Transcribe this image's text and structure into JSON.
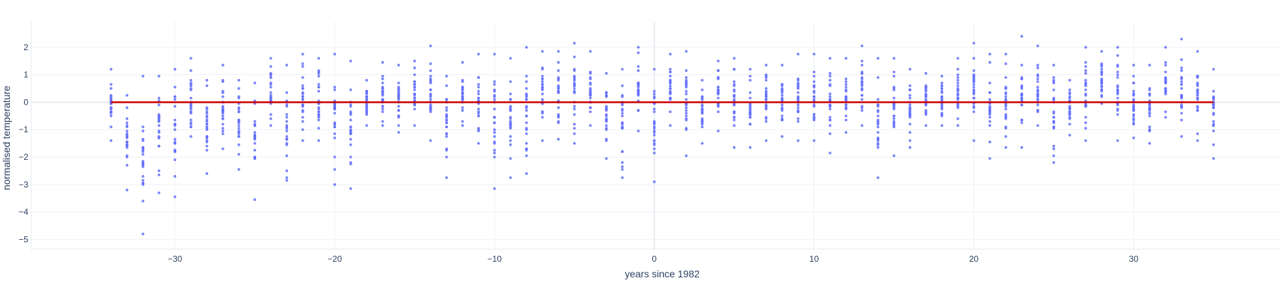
{
  "chart_data": {
    "type": "scatter",
    "title": "",
    "xlabel": "years since 1982",
    "ylabel": "normalised temperature",
    "xlim": [
      -39,
      39.2
    ],
    "ylim": [
      -5.35,
      2.95
    ],
    "x_ticks": [
      -30,
      -20,
      -10,
      0,
      10,
      20,
      30
    ],
    "x_tick_labels": [
      "−30",
      "−20",
      "−10",
      "0",
      "10",
      "20",
      "30"
    ],
    "y_ticks": [
      -5,
      -4,
      -3,
      -2,
      -1,
      0,
      1,
      2
    ],
    "y_tick_labels": [
      "−5",
      "−4",
      "−3",
      "−2",
      "−1",
      "0",
      "1",
      "2"
    ],
    "grid": true,
    "legend": "none",
    "points_color": "#636efa",
    "fit_color": "#cc0000",
    "years": [
      -34,
      -33,
      -32,
      -31,
      -30,
      -29,
      -28,
      -27,
      -26,
      -25,
      -24,
      -23,
      -22,
      -21,
      -20,
      -19,
      -18,
      -17,
      -16,
      -15,
      -14,
      -13,
      -12,
      -11,
      -10,
      -9,
      -8,
      -7,
      -6,
      -5,
      -4,
      -3,
      -2,
      -1,
      0,
      1,
      2,
      3,
      4,
      5,
      6,
      7,
      8,
      9,
      10,
      11,
      12,
      13,
      14,
      15,
      16,
      17,
      18,
      19,
      20,
      21,
      22,
      23,
      24,
      25,
      26,
      27,
      28,
      29,
      30,
      31,
      32,
      33,
      34,
      35
    ],
    "points_per_year": 24,
    "year_ranges": [
      [
        -1.4,
        1.2
      ],
      [
        -3.2,
        0.25
      ],
      [
        -4.8,
        0.95
      ],
      [
        -3.3,
        0.95
      ],
      [
        -3.45,
        1.2
      ],
      [
        -1.25,
        1.6
      ],
      [
        -2.6,
        0.8
      ],
      [
        -1.7,
        1.35
      ],
      [
        -2.45,
        0.8
      ],
      [
        -3.55,
        0.7
      ],
      [
        -0.85,
        1.6
      ],
      [
        -2.85,
        1.35
      ],
      [
        -1.4,
        1.75
      ],
      [
        -1.4,
        1.6
      ],
      [
        -3.0,
        1.75
      ],
      [
        -3.15,
        1.5
      ],
      [
        -0.85,
        0.8
      ],
      [
        -0.85,
        1.45
      ],
      [
        -1.1,
        1.35
      ],
      [
        -0.85,
        1.5
      ],
      [
        -1.4,
        2.05
      ],
      [
        -2.75,
        0.95
      ],
      [
        -0.85,
        1.45
      ],
      [
        -1.5,
        1.75
      ],
      [
        -3.15,
        1.75
      ],
      [
        -2.75,
        1.6
      ],
      [
        -2.6,
        2.0
      ],
      [
        -1.4,
        1.85
      ],
      [
        -1.35,
        1.85
      ],
      [
        -1.5,
        2.15
      ],
      [
        -0.85,
        1.85
      ],
      [
        -2.05,
        1.05
      ],
      [
        -2.75,
        1.2
      ],
      [
        -1.05,
        2.0
      ],
      [
        -2.9,
        1.2
      ],
      [
        -0.85,
        1.75
      ],
      [
        -1.95,
        1.85
      ],
      [
        -1.5,
        0.8
      ],
      [
        -1.05,
        1.5
      ],
      [
        -1.65,
        1.6
      ],
      [
        -1.65,
        1.2
      ],
      [
        -1.4,
        1.35
      ],
      [
        -1.25,
        1.35
      ],
      [
        -1.4,
        1.75
      ],
      [
        -1.4,
        1.75
      ],
      [
        -1.85,
        1.6
      ],
      [
        -1.1,
        1.6
      ],
      [
        -0.85,
        2.05
      ],
      [
        -2.75,
        1.6
      ],
      [
        -1.95,
        1.6
      ],
      [
        -1.65,
        1.2
      ],
      [
        -0.85,
        1.05
      ],
      [
        -0.85,
        0.95
      ],
      [
        -0.85,
        1.6
      ],
      [
        -1.4,
        2.15
      ],
      [
        -2.05,
        1.75
      ],
      [
        -1.65,
        1.75
      ],
      [
        -1.65,
        2.4
      ],
      [
        -0.85,
        2.05
      ],
      [
        -2.2,
        1.35
      ],
      [
        -1.2,
        0.8
      ],
      [
        -1.4,
        2.0
      ],
      [
        -0.05,
        1.85
      ],
      [
        -1.4,
        2.0
      ],
      [
        -1.3,
        1.35
      ],
      [
        -1.5,
        1.35
      ],
      [
        -0.55,
        2.0
      ],
      [
        -1.25,
        2.3
      ],
      [
        -1.4,
        1.85
      ],
      [
        -2.05,
        1.2
      ]
    ],
    "fit_line": {
      "x": [
        -34,
        35
      ],
      "y": [
        0,
        0
      ]
    }
  }
}
